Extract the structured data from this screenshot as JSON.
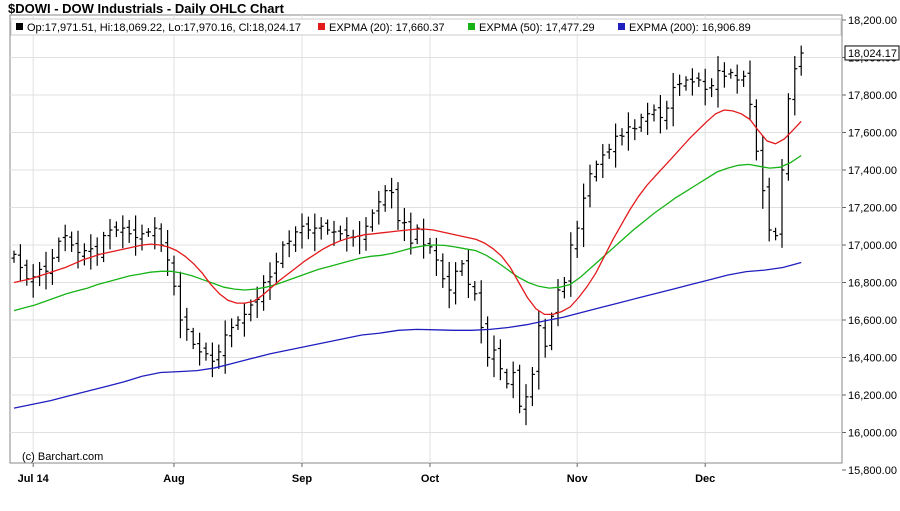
{
  "chart_data": {
    "type": "ohlc",
    "title": "$DOWI - DOW Industrials - Daily OHLC Chart",
    "legend": {
      "ohlc": "Op:17,971.51, Hi:18,069.22, Lo:17,970.16, Cl:18,024.17",
      "items": [
        {
          "label": "EXPMA (20): 17,660.37",
          "color": "#e31a1c"
        },
        {
          "label": "EXPMA (50): 17,477.29",
          "color": "#17b317"
        },
        {
          "label": "EXPMA (200): 16,906.89",
          "color": "#1f1fbf"
        }
      ],
      "placement": "top-left"
    },
    "credit": "(c) Barchart.com",
    "ylim": [
      15800,
      18200
    ],
    "y_ticks": [
      "15,800.00",
      "16,000.00",
      "16,200.00",
      "16,400.00",
      "16,600.00",
      "16,800.00",
      "17,000.00",
      "17,200.00",
      "17,400.00",
      "17,600.00",
      "17,800.00",
      "18,000.00",
      "18,200.00"
    ],
    "y_tick_values": [
      15800,
      16000,
      16200,
      16400,
      16600,
      16800,
      17000,
      17200,
      17400,
      17600,
      17800,
      18000,
      18200
    ],
    "last_close_label": "18,024.17",
    "last_close": 18024.17,
    "x_months": [
      {
        "label": "Jul 14",
        "index": 3
      },
      {
        "label": "Aug",
        "index": 25
      },
      {
        "label": "Sep",
        "index": 45
      },
      {
        "label": "Oct",
        "index": 65
      },
      {
        "label": "Nov",
        "index": 88
      },
      {
        "label": "Dec",
        "index": 108
      }
    ],
    "x_count": 124,
    "closes": [
      16950,
      16880,
      16820,
      16830,
      16870,
      16860,
      16930,
      17020,
      17050,
      17000,
      16960,
      16970,
      16980,
      16950,
      17050,
      17080,
      17080,
      17090,
      17060,
      17040,
      17060,
      17070,
      17090,
      17000,
      16920,
      16780,
      16600,
      16550,
      16470,
      16430,
      16420,
      16380,
      16430,
      16520,
      16560,
      16600,
      16630,
      16680,
      16710,
      16800,
      16830,
      16910,
      17000,
      17020,
      17070,
      17100,
      17080,
      17090,
      17100,
      17080,
      17070,
      17060,
      17050,
      17040,
      17050,
      17100,
      17170,
      17230,
      17290,
      17280,
      17130,
      17120,
      17010,
      17090,
      17000,
      16990,
      16920,
      16820,
      16760,
      16860,
      16900,
      16790,
      16740,
      16560,
      16400,
      16440,
      16340,
      16260,
      16320,
      16140,
      16190,
      16310,
      16570,
      16460,
      16620,
      16760,
      16800,
      17000,
      17090,
      17250,
      17380,
      17430,
      17480,
      17510,
      17580,
      17580,
      17630,
      17620,
      17680,
      17700,
      17720,
      17680,
      17730,
      17840,
      17860,
      17880,
      17870,
      17880,
      17830,
      17850,
      17930,
      17900,
      17920,
      17880,
      17900,
      17750,
      17500,
      17290,
      17080,
      17050,
      17400,
      17780,
      17940,
      18024.17
    ],
    "ema20": [
      16800,
      16810,
      16820,
      16835,
      16850,
      16865,
      16880,
      16900,
      16920,
      16935,
      16950,
      16960,
      16970,
      16980,
      16990,
      17000,
      17005,
      17000,
      16990,
      16970,
      16940,
      16900,
      16850,
      16790,
      16740,
      16705,
      16690,
      16690,
      16700,
      16730,
      16770,
      16810,
      16845,
      16880,
      16915,
      16945,
      16975,
      17000,
      17020,
      17035,
      17045,
      17055,
      17060,
      17065,
      17070,
      17075,
      17080,
      17085,
      17085,
      17080,
      17070,
      17060,
      17050,
      17040,
      17030,
      17010,
      16980,
      16940,
      16880,
      16800,
      16720,
      16660,
      16630,
      16630,
      16645,
      16670,
      16720,
      16780,
      16850,
      16940,
      17030,
      17110,
      17190,
      17260,
      17320,
      17370,
      17420,
      17470,
      17520,
      17570,
      17615,
      17660,
      17700,
      17720,
      17715,
      17700,
      17670,
      17610,
      17555,
      17540,
      17565,
      17610,
      17660
    ],
    "ema20_start": 0,
    "ema20_end": 124,
    "ema50": [
      16650,
      16665,
      16680,
      16700,
      16720,
      16740,
      16755,
      16770,
      16790,
      16805,
      16820,
      16835,
      16845,
      16855,
      16860,
      16860,
      16850,
      16835,
      16815,
      16795,
      16775,
      16765,
      16760,
      16765,
      16775,
      16790,
      16810,
      16830,
      16850,
      16870,
      16885,
      16900,
      16915,
      16930,
      16940,
      16945,
      16955,
      16970,
      16985,
      16995,
      17000,
      16998,
      16990,
      16980,
      16970,
      16945,
      16910,
      16870,
      16830,
      16800,
      16780,
      16770,
      16775,
      16790,
      16830,
      16880,
      16930,
      16980,
      17030,
      17080,
      17125,
      17170,
      17210,
      17250,
      17285,
      17320,
      17355,
      17390,
      17410,
      17425,
      17430,
      17420,
      17410,
      17415,
      17440,
      17477.29
    ],
    "ema200": [
      16130,
      16150,
      16170,
      16195,
      16220,
      16245,
      16270,
      16300,
      16320,
      16325,
      16330,
      16345,
      16370,
      16395,
      16420,
      16440,
      16460,
      16480,
      16500,
      16520,
      16530,
      16545,
      16550,
      16548,
      16545,
      16545,
      16550,
      16560,
      16575,
      16595,
      16615,
      16640,
      16665,
      16690,
      16715,
      16740,
      16765,
      16790,
      16815,
      16840,
      16858,
      16866,
      16880,
      16906.89
    ]
  }
}
